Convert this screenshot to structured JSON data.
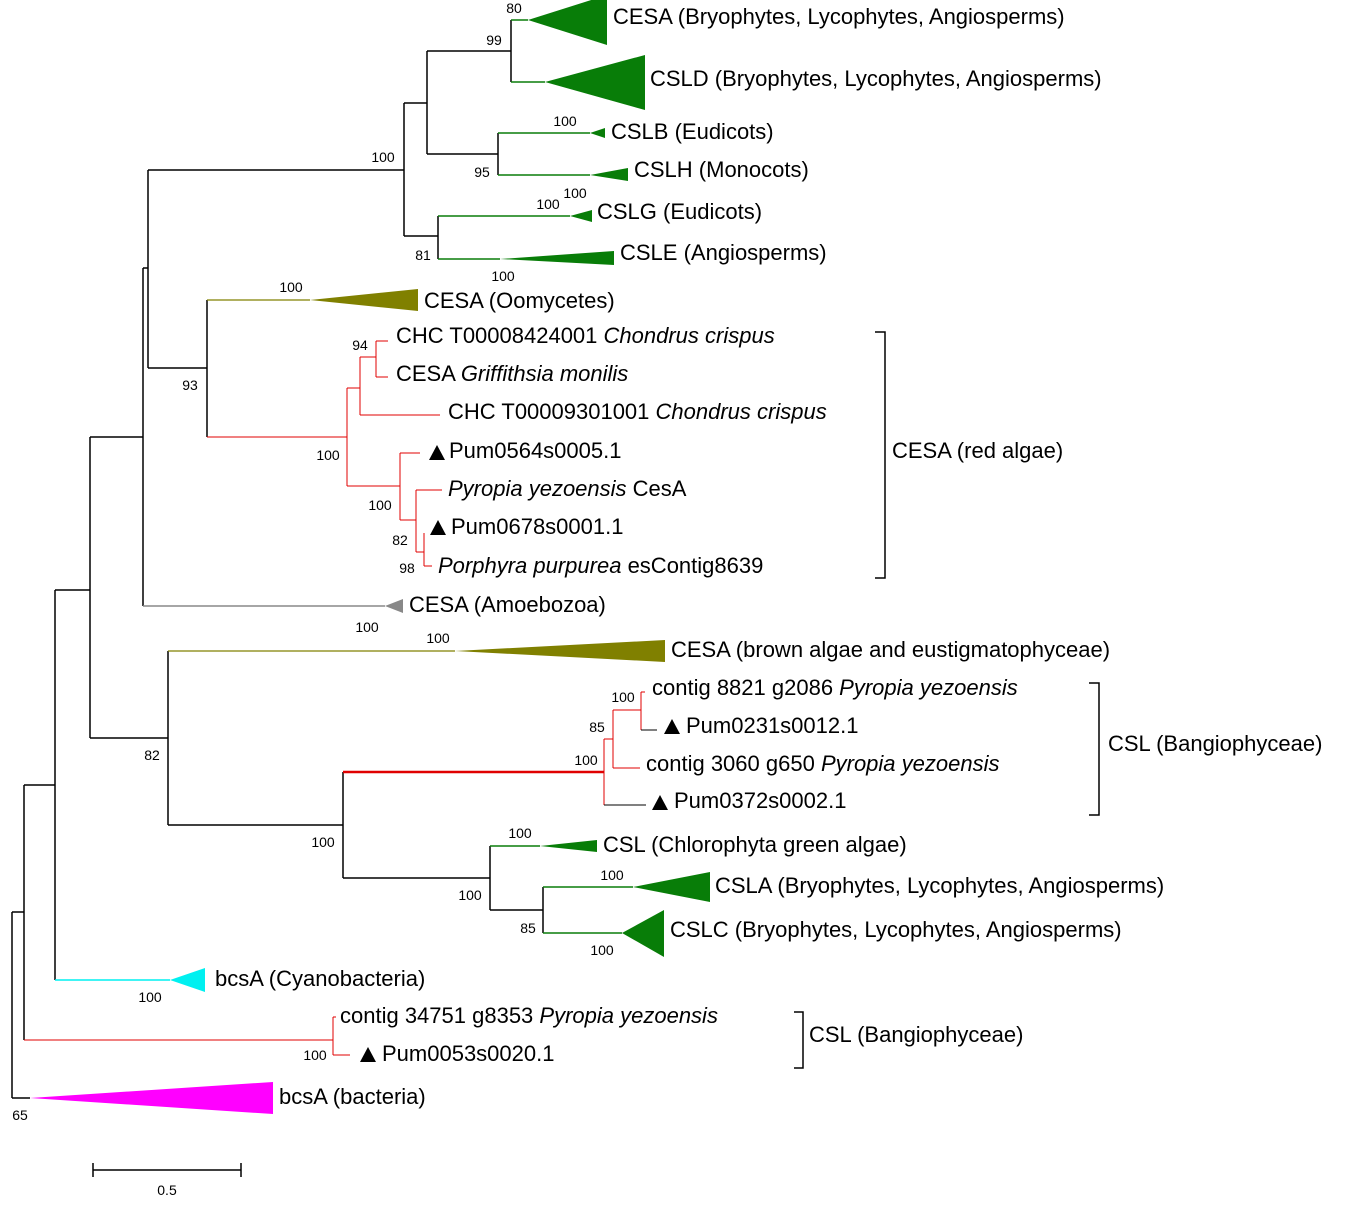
{
  "colors": {
    "land_plants": "#087d08",
    "stramenopiles": "#808000",
    "red_algae": "#e00000",
    "amoebozoa": "#888888",
    "cyanobacteria": "#00f0f0",
    "bacteria": "#ff00ff",
    "backbone": "#000000"
  },
  "leaves": {
    "cesa_land": "CESA (Bryophytes, Lycophytes, Angiosperms)",
    "csld": "CSLD (Bryophytes, Lycophytes, Angiosperms)",
    "cslb": "CSLB (Eudicots)",
    "cslh": "CSLH (Monocots)",
    "cslg": "CSLG (Eudicots)",
    "csle": "CSLE (Angiosperms)",
    "cesa_oomycetes": "CESA (Oomycetes)",
    "chc_8424": {
      "prefix": "CHC T00008424001 ",
      "italic": "Chondrus crispus"
    },
    "cesa_griffithsia": {
      "prefix": "CESA ",
      "italic": "Griffithsia monilis"
    },
    "chc_9301": {
      "prefix": "CHC T00009301001 ",
      "italic": "Chondrus crispus"
    },
    "pum0564": "Pum0564s0005.1",
    "pyropia_cesa": {
      "italic": "Pyropia yezoensis",
      "suffix": " CesA"
    },
    "pum0678": "Pum0678s0001.1",
    "porphyra": {
      "italic": "Porphyra purpurea",
      "suffix": " esContig8639"
    },
    "cesa_amoebozoa": "CESA (Amoebozoa)",
    "cesa_brown": "CESA (brown algae and eustigmatophyceae)",
    "contig_8821": {
      "prefix": "contig 8821 g2086 ",
      "italic": "Pyropia yezoensis"
    },
    "pum0231": "Pum0231s0012.1",
    "contig_3060": {
      "prefix": "contig 3060 g650 ",
      "italic": "Pyropia yezoensis"
    },
    "pum0372": "Pum0372s0002.1",
    "csl_chlorophyta": "CSL (Chlorophyta green algae)",
    "csla": "CSLA (Bryophytes, Lycophytes, Angiosperms)",
    "cslc": "CSLC (Bryophytes, Lycophytes, Angiosperms)",
    "bcsa_cyano": "bcsA (Cyanobacteria)",
    "contig_34751": {
      "prefix": "contig 34751 g8353 ",
      "italic": "Pyropia yezoensis"
    },
    "pum0053": "Pum0053s0020.1",
    "bcsa_bacteria": "bcsA (bacteria)"
  },
  "brackets": {
    "red_algae": "CESA (red algae)",
    "bangio_1": "CSL (Bangiophyceae)",
    "bangio_2": "CSL (Bangiophyceae)"
  },
  "bootstrap": [
    "80",
    "99",
    "100",
    "100",
    "95",
    "100",
    "100",
    "81",
    "100",
    "100",
    "94",
    "93",
    "100",
    "100",
    "82",
    "98",
    "100",
    "100",
    "100",
    "85",
    "100",
    "82",
    "100",
    "100",
    "100",
    "100",
    "85",
    "100",
    "100",
    "100",
    "65"
  ],
  "marker": "filled-triangle (Porphyra umbilicalis sequence)",
  "scale_bar": {
    "label": "0.5"
  }
}
